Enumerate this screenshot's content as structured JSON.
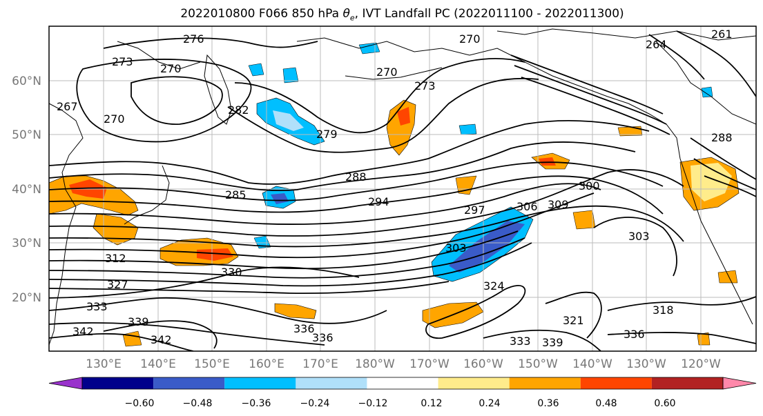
{
  "title_prefix": "2022010800 F066 850 hPa ",
  "title_symbol": "θ",
  "title_sub": "e",
  "title_suffix": ", IVT Landfall PC (2022011100 - 2022011300)",
  "lat_labels": [
    "60°N",
    "50°N",
    "40°N",
    "30°N",
    "20°N"
  ],
  "lon_labels": [
    "130°E",
    "140°E",
    "150°E",
    "160°E",
    "170°E",
    "180°W",
    "170°W",
    "160°W",
    "150°W",
    "140°W",
    "130°W",
    "120°W"
  ],
  "contour_labels": [
    "276",
    "273",
    "270",
    "270",
    "267",
    "270",
    "282",
    "279",
    "270",
    "273",
    "288",
    "285",
    "294",
    "297",
    "300",
    "306",
    "309",
    "303",
    "303",
    "312",
    "330",
    "327",
    "333",
    "339",
    "342",
    "342",
    "336",
    "336",
    "324",
    "321",
    "333",
    "339",
    "336",
    "318",
    "264",
    "261",
    "288"
  ],
  "colorbar": {
    "ticks": [
      "−0.60",
      "−0.48",
      "−0.36",
      "−0.24",
      "−0.12",
      "0.12",
      "0.24",
      "0.36",
      "0.48",
      "0.60"
    ],
    "colors": [
      "#9932cc",
      "#00008b",
      "#3a5bc8",
      "#00bfff",
      "#b0e0fa",
      "#ffffff",
      "#ffec8b",
      "#ffa500",
      "#ff4500",
      "#b22222",
      "#ff88aa"
    ]
  },
  "colors": {
    "neg_strong": "#3a5bc8",
    "neg_mid": "#00bfff",
    "neg_weak": "#b0e0fa",
    "pos_weak": "#ffec8b",
    "pos_mid": "#ffa500",
    "pos_strong": "#ff4500",
    "gridline": "#bbbbbb",
    "axis_label": "#777777"
  }
}
